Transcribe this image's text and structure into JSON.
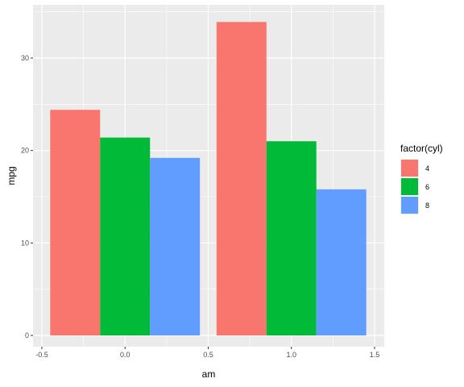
{
  "chart_data": {
    "type": "bar",
    "xlabel": "am",
    "ylabel": "mpg",
    "xlim": [
      -0.5,
      1.5
    ],
    "ylim": [
      0,
      34
    ],
    "x_ticks": [
      -0.5,
      0.0,
      0.5,
      1.0,
      1.5
    ],
    "x_tick_labels": [
      "-0.5",
      "0.0",
      "0.5",
      "1.0",
      "1.5"
    ],
    "y_ticks": [
      0,
      10,
      20,
      30
    ],
    "y_tick_labels": [
      "0",
      "10",
      "20",
      "30"
    ],
    "grid": true,
    "legend": {
      "title": "factor(cyl)",
      "placement": "right"
    },
    "bar_width": 0.9,
    "categories": [
      0,
      1
    ],
    "series": [
      {
        "name": "4",
        "color": "#F8766D",
        "values": [
          24.4,
          33.9
        ]
      },
      {
        "name": "6",
        "color": "#00BA38",
        "values": [
          21.4,
          21.0
        ]
      },
      {
        "name": "8",
        "color": "#619CFF",
        "values": [
          19.2,
          15.8
        ]
      }
    ],
    "panel_background": "#EBEBEB",
    "gridline_color": "#FFFFFF"
  }
}
